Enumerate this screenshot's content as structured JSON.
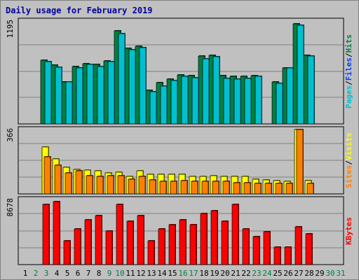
{
  "chart_data": {
    "type": "bar",
    "title": "Daily usage for February 2019",
    "days": [
      "1",
      "2",
      "3",
      "4",
      "5",
      "6",
      "7",
      "8",
      "9",
      "10",
      "11",
      "12",
      "13",
      "14",
      "15",
      "16",
      "17",
      "18",
      "19",
      "20",
      "21",
      "22",
      "23",
      "24",
      "25",
      "26",
      "27",
      "28",
      "29",
      "30",
      "31"
    ],
    "weekend_days": [
      "2",
      "3",
      "9",
      "10",
      "16",
      "17",
      "23",
      "24",
      "30",
      "31"
    ],
    "panels": [
      {
        "max_label": "1195",
        "ymax": 1195,
        "legend": [
          "Pages",
          "/",
          "Files",
          "/",
          "Hits"
        ],
        "legend_colors": [
          "#00c0d0",
          "#000000",
          "#0040ff",
          "#000000",
          "#008040"
        ],
        "series": [
          {
            "name": "Hits",
            "color": "#008040",
            "values": [
              null,
              null,
              740,
              680,
              490,
              670,
              700,
              690,
              730,
              1080,
              880,
              900,
              390,
              480,
              520,
              570,
              560,
              790,
              800,
              560,
              550,
              550,
              560,
              null,
              490,
              650,
              1165,
              800,
              null,
              null,
              null
            ]
          },
          {
            "name": "Files",
            "color": "#0040ff",
            "values": [
              null,
              null,
              null,
              null,
              null,
              null,
              null,
              null,
              null,
              null,
              null,
              null,
              null,
              null,
              null,
              null,
              null,
              null,
              null,
              null,
              null,
              null,
              null,
              null,
              null,
              null,
              null,
              null,
              null,
              null,
              null
            ]
          },
          {
            "name": "Pages",
            "color": "#00c0d0",
            "values": [
              null,
              null,
              720,
              660,
              490,
              650,
              690,
              670,
              720,
              1050,
              860,
              890,
              370,
              440,
              500,
              550,
              540,
              760,
              780,
              530,
              520,
              530,
              550,
              null,
              470,
              650,
              1150,
              790,
              null,
              null,
              null
            ]
          }
        ]
      },
      {
        "max_label": "366",
        "ymax": 366,
        "legend": [
          "Sites",
          "/",
          "Visits"
        ],
        "legend_colors": [
          "#ff8000",
          "#000000",
          "#ffff00"
        ],
        "series": [
          {
            "name": "Visits",
            "color": "#ffff00",
            "values": [
              null,
              null,
              265,
              200,
              150,
              140,
              135,
              130,
              120,
              125,
              100,
              130,
              110,
              110,
              110,
              110,
              100,
              100,
              105,
              100,
              100,
              100,
              85,
              80,
              75,
              70,
              366,
              75,
              null,
              null,
              null
            ]
          },
          {
            "name": "Sites",
            "color": "#ff8000",
            "values": [
              null,
              null,
              210,
              165,
              120,
              130,
              105,
              100,
              105,
              105,
              85,
              100,
              80,
              70,
              70,
              75,
              70,
              70,
              70,
              70,
              65,
              65,
              60,
              60,
              60,
              60,
              365,
              60,
              null,
              null,
              null
            ]
          }
        ]
      },
      {
        "max_label": "8678",
        "ymax": 8678,
        "legend": [
          "KBytes"
        ],
        "legend_colors": [
          "#ff0000"
        ],
        "series": [
          {
            "name": "KBytes",
            "color": "#ff0000",
            "values": [
              null,
              null,
              8000,
              8400,
              3200,
              4800,
              6000,
              6500,
              4500,
              8000,
              5800,
              6500,
              3200,
              4800,
              5300,
              6000,
              5300,
              6800,
              7200,
              5800,
              8000,
              4800,
              3700,
              4400,
              2300,
              2300,
              5000,
              4100,
              null,
              null,
              null
            ]
          }
        ]
      }
    ]
  }
}
